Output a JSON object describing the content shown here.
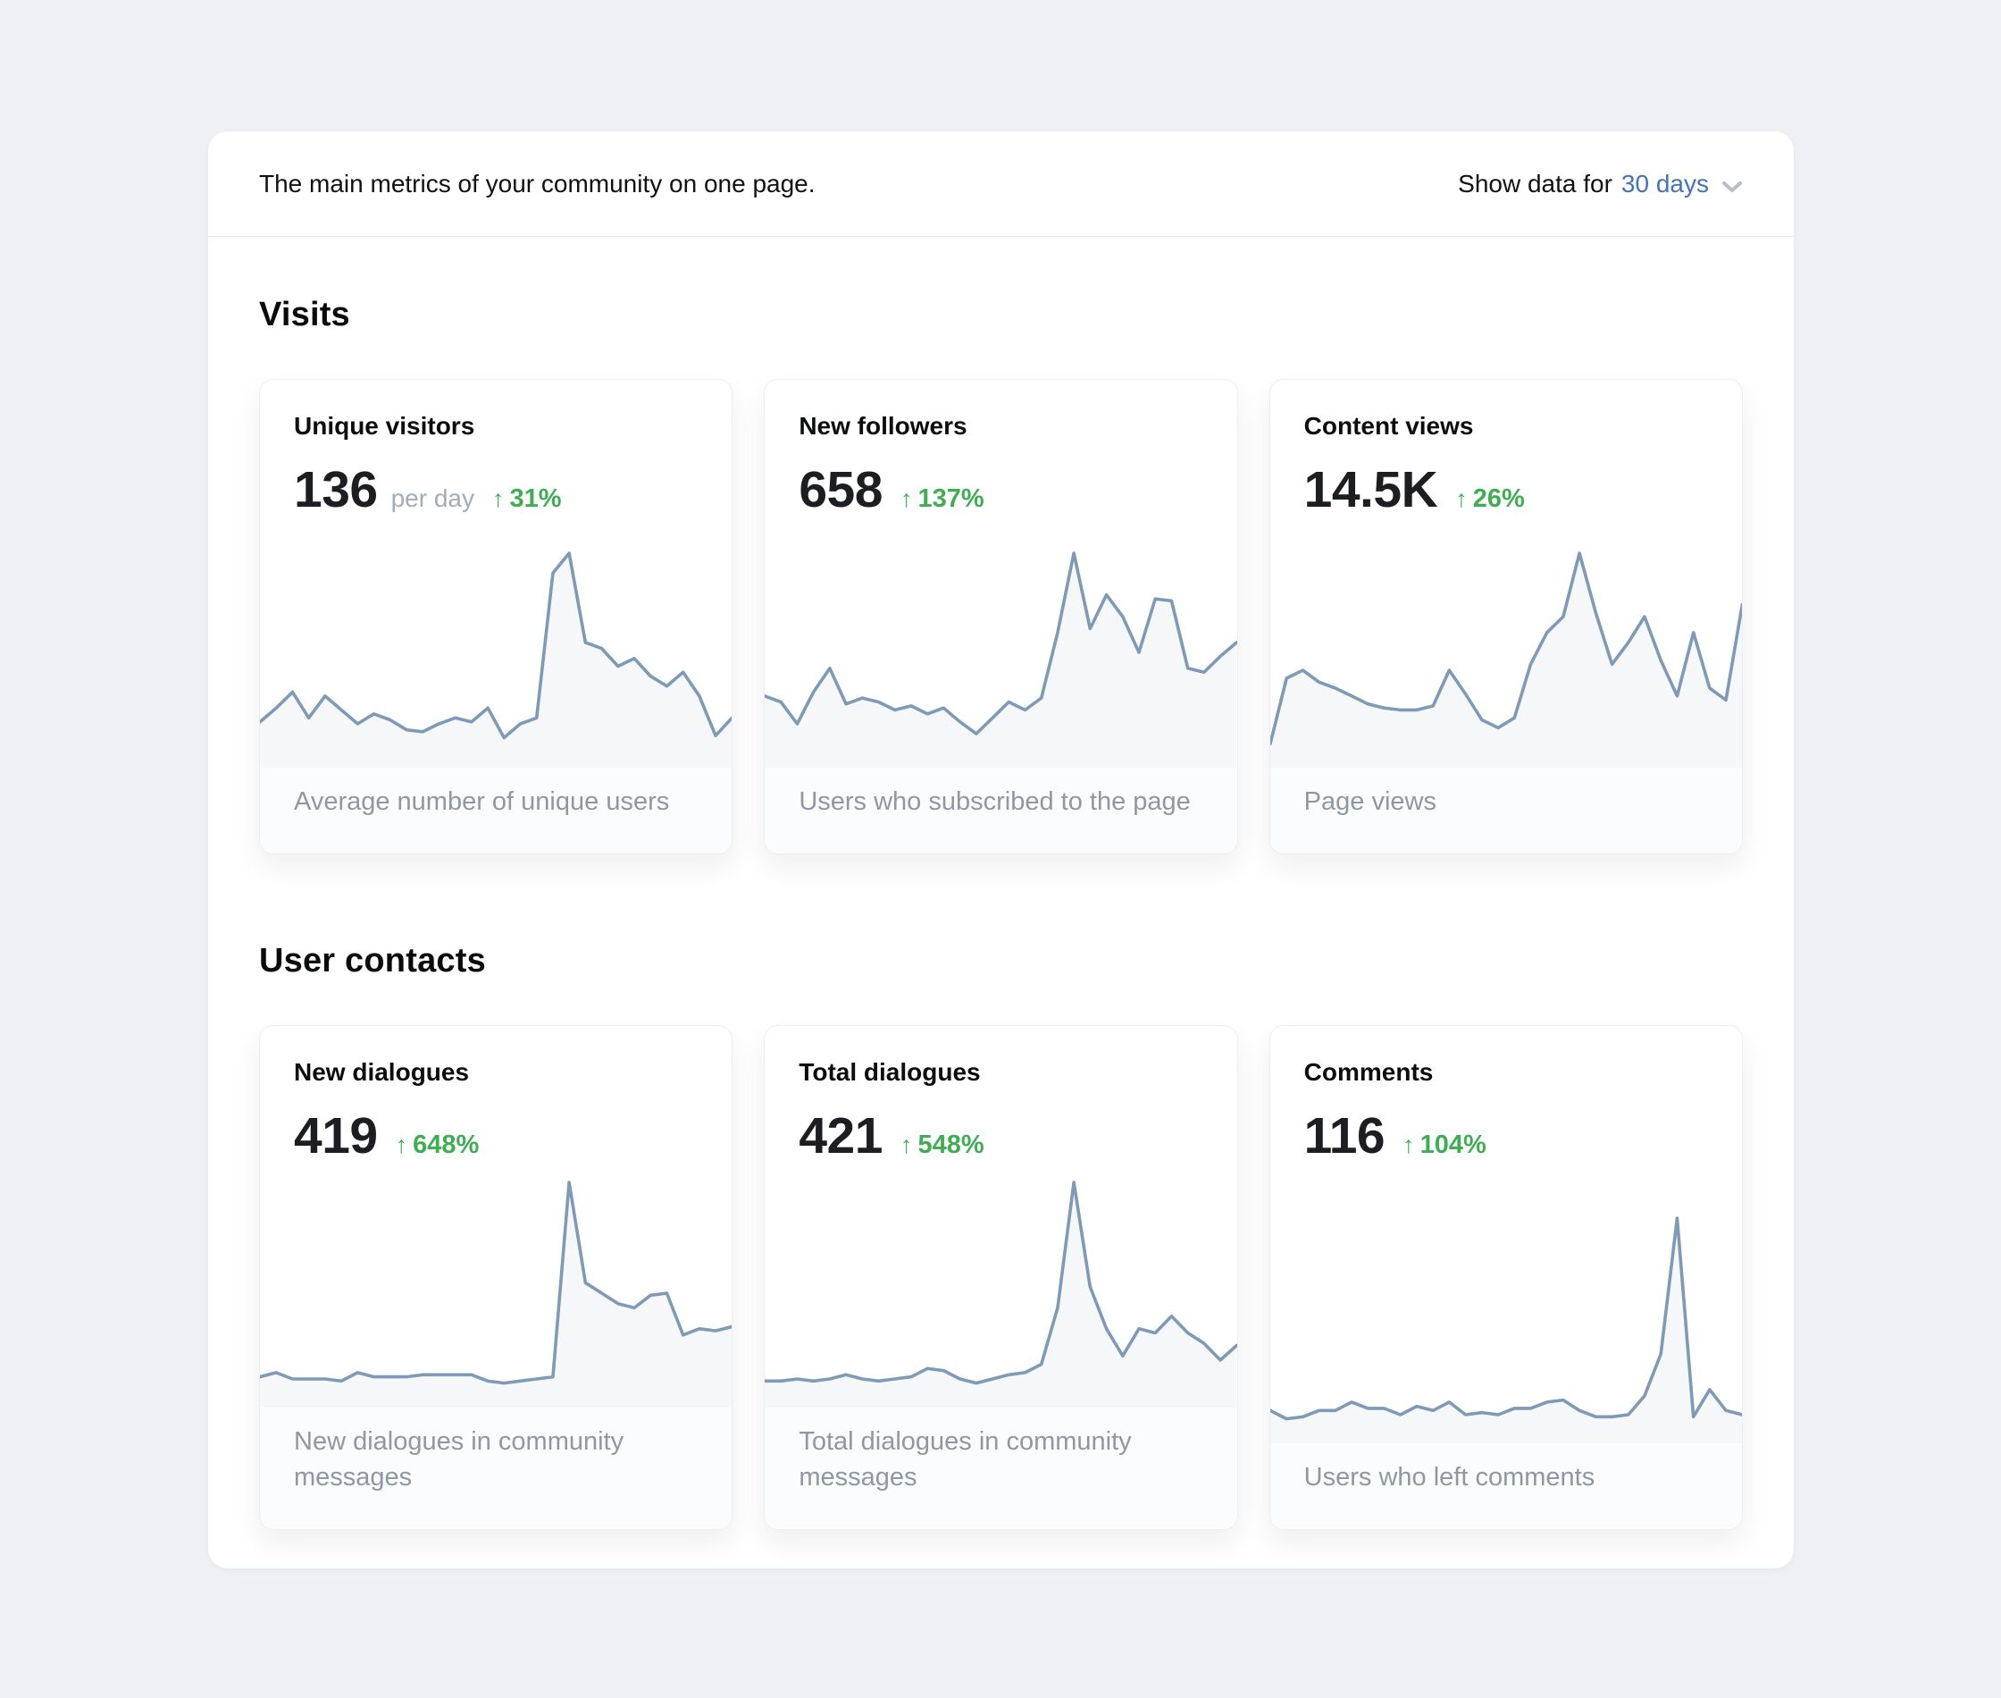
{
  "header": {
    "title": "The main metrics of your community on one page.",
    "period": {
      "label": "Show data for",
      "value": "30 days"
    }
  },
  "icons": {
    "up_arrow": "↑"
  },
  "colors": {
    "accent_blue": "#4273b8",
    "positive_green": "#3fae53",
    "chart_line": "#7e9ab6",
    "chart_fill": "rgba(126,154,182,0.08)",
    "muted_text": "#8f97a2"
  },
  "sections": [
    {
      "title": "Visits",
      "cards": [
        {
          "title": "Unique visitors",
          "value": "136",
          "unit": "per day",
          "change": "31%",
          "description": "Average number of unique users"
        },
        {
          "title": "New followers",
          "value": "658",
          "change": "137%",
          "description": "Users who subscribed to the page"
        },
        {
          "title": "Content views",
          "value": "14.5K",
          "change": "26%",
          "description": "Page views"
        }
      ]
    },
    {
      "title": "User contacts",
      "cards": [
        {
          "title": "New dialogues",
          "value": "419",
          "change": "648%",
          "description": "New dialogues in community messages"
        },
        {
          "title": "Total dialogues",
          "value": "421",
          "change": "548%",
          "description": "Total dialogues in community messages"
        },
        {
          "title": "Comments",
          "value": "116",
          "change": "104%",
          "description": "Users who left comments"
        }
      ]
    }
  ],
  "chart_data": [
    {
      "type": "line",
      "title": "Unique visitors — last 30 days",
      "x": "days (30)",
      "ylim": [
        0,
        100
      ],
      "grid": false,
      "values": [
        15,
        22,
        30,
        17,
        28,
        21,
        14,
        19,
        16,
        11,
        10,
        14,
        17,
        15,
        22,
        7,
        14,
        17,
        90,
        100,
        55,
        52,
        43,
        47,
        38,
        33,
        40,
        28,
        8,
        17
      ]
    },
    {
      "type": "line",
      "title": "New followers — last 30 days",
      "x": "days (30)",
      "ylim": [
        0,
        100
      ],
      "grid": false,
      "values": [
        28,
        25,
        14,
        30,
        42,
        24,
        27,
        25,
        21,
        23,
        19,
        22,
        15,
        9,
        17,
        25,
        21,
        27,
        60,
        100,
        62,
        79,
        68,
        50,
        77,
        76,
        42,
        40,
        48,
        55
      ]
    },
    {
      "type": "line",
      "title": "Content views — last 30 days",
      "x": "days (30)",
      "ylim": [
        0,
        100
      ],
      "grid": false,
      "values": [
        4,
        37,
        41,
        35,
        32,
        28,
        24,
        22,
        21,
        21,
        23,
        41,
        29,
        16,
        12,
        17,
        44,
        60,
        68,
        100,
        70,
        44,
        55,
        68,
        46,
        28,
        60,
        32,
        26,
        74
      ]
    },
    {
      "type": "line",
      "title": "New dialogues — last 30 days",
      "x": "days (30)",
      "ylim": [
        0,
        100
      ],
      "grid": false,
      "values": [
        7,
        9,
        6,
        6,
        6,
        5,
        9,
        7,
        7,
        7,
        8,
        8,
        8,
        8,
        5,
        4,
        5,
        6,
        7,
        100,
        52,
        47,
        42,
        40,
        46,
        47,
        27,
        30,
        29,
        31
      ]
    },
    {
      "type": "line",
      "title": "Total dialogues — last 30 days",
      "x": "days (30)",
      "ylim": [
        0,
        100
      ],
      "grid": false,
      "values": [
        5,
        5,
        6,
        5,
        6,
        8,
        6,
        5,
        6,
        7,
        11,
        10,
        6,
        4,
        6,
        8,
        9,
        13,
        40,
        100,
        50,
        30,
        17,
        30,
        28,
        36,
        28,
        23,
        15,
        22
      ]
    },
    {
      "type": "line",
      "title": "Comments — last 30 days",
      "x": "days (30)",
      "ylim": [
        0,
        100
      ],
      "grid": false,
      "values": [
        8,
        4,
        5,
        8,
        8,
        12,
        9,
        9,
        6,
        10,
        8,
        12,
        6,
        7,
        6,
        9,
        9,
        12,
        13,
        8,
        5,
        5,
        6,
        15,
        35,
        100,
        5,
        18,
        8,
        6
      ]
    }
  ]
}
